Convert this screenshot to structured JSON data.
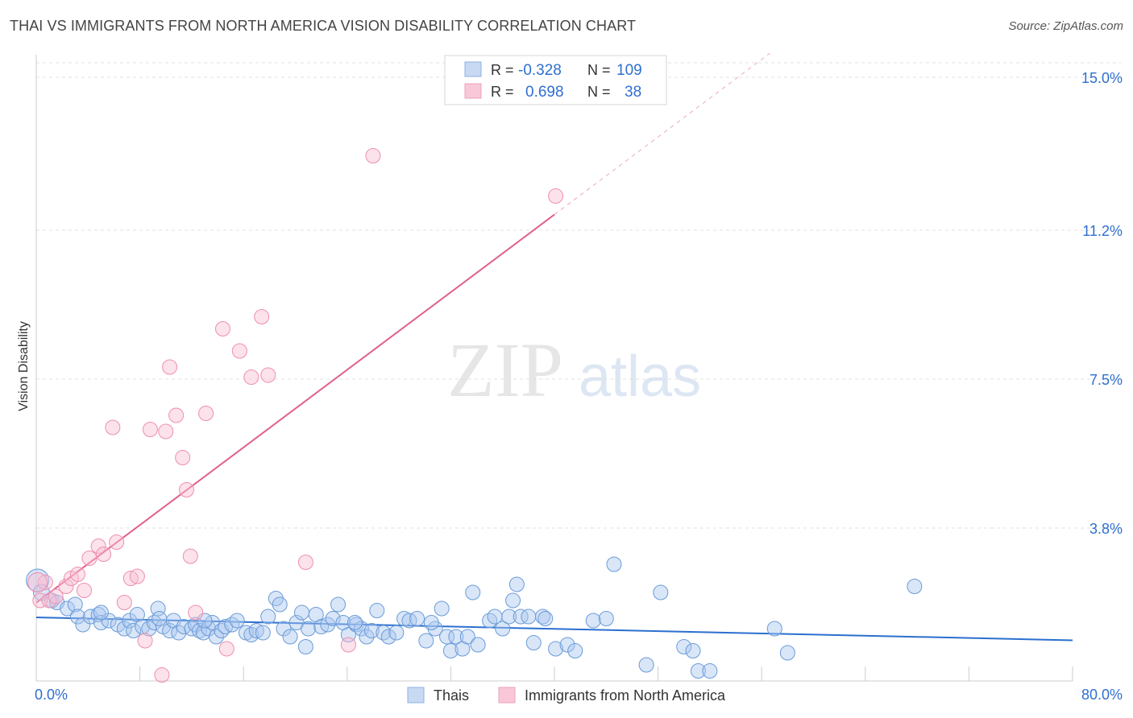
{
  "header": {
    "title": "THAI VS IMMIGRANTS FROM NORTH AMERICA VISION DISABILITY CORRELATION CHART",
    "source": "Source: ZipAtlas.com"
  },
  "watermark": {
    "zip": "ZIP",
    "atlas": "atlas"
  },
  "colors": {
    "thais": "#6a9bd8",
    "immigrants": "#ee8fb0",
    "thais_line": "#2b6fcf",
    "immigrants_line": "#e0608a",
    "value_text": "#2f6fd0"
  },
  "legend": {
    "rows": [
      {
        "r_label": "R =",
        "r_value": "-0.328",
        "n_label": "N =",
        "n_value": "109"
      },
      {
        "r_label": "R =",
        "r_value": "0.698",
        "n_label": "N =",
        "n_value": "38"
      }
    ]
  },
  "chart_data": {
    "type": "scatter",
    "ylabel": "Vision Disability",
    "xlim": [
      0,
      80
    ],
    "ylim": [
      0,
      15
    ],
    "x_tick_labels": [
      "0.0%",
      "80.0%"
    ],
    "y_ticks": [
      3.8,
      7.5,
      11.2,
      15.0
    ],
    "y_tick_labels": [
      "3.8%",
      "7.5%",
      "11.2%",
      "15.0%"
    ],
    "grid": true,
    "legend_position": "bottom",
    "series": [
      {
        "name": "Thais",
        "points": [
          [
            0.1,
            2.5,
            14
          ],
          [
            0.4,
            2.2,
            10
          ],
          [
            1.2,
            2.0,
            9
          ],
          [
            1.6,
            1.95,
            9
          ],
          [
            2.4,
            1.8,
            9
          ],
          [
            3.0,
            1.9,
            9
          ],
          [
            3.2,
            1.6,
            9
          ],
          [
            3.6,
            1.4,
            9
          ],
          [
            4.2,
            1.6,
            9
          ],
          [
            4.8,
            1.65,
            9
          ],
          [
            5.0,
            1.45,
            9
          ],
          [
            5.6,
            1.5,
            9
          ],
          [
            6.3,
            1.4,
            9
          ],
          [
            6.8,
            1.3,
            9
          ],
          [
            7.2,
            1.5,
            9
          ],
          [
            7.5,
            1.25,
            9
          ],
          [
            7.8,
            1.65,
            9
          ],
          [
            8.2,
            1.35,
            9
          ],
          [
            8.7,
            1.3,
            9
          ],
          [
            9.1,
            1.45,
            9
          ],
          [
            9.4,
            1.8,
            9
          ],
          [
            9.8,
            1.35,
            9
          ],
          [
            10.3,
            1.25,
            9
          ],
          [
            10.6,
            1.5,
            9
          ],
          [
            11.0,
            1.2,
            9
          ],
          [
            11.4,
            1.35,
            9
          ],
          [
            12.0,
            1.3,
            9
          ],
          [
            12.3,
            1.4,
            9
          ],
          [
            12.6,
            1.25,
            9
          ],
          [
            12.9,
            1.2,
            9
          ],
          [
            13.3,
            1.3,
            9
          ],
          [
            13.6,
            1.45,
            9
          ],
          [
            13.9,
            1.1,
            9
          ],
          [
            14.3,
            1.25,
            9
          ],
          [
            14.6,
            1.35,
            9
          ],
          [
            15.1,
            1.4,
            9
          ],
          [
            15.5,
            1.5,
            9
          ],
          [
            16.2,
            1.2,
            9
          ],
          [
            16.6,
            1.15,
            9
          ],
          [
            17.0,
            1.25,
            9
          ],
          [
            17.5,
            1.2,
            9
          ],
          [
            17.9,
            1.6,
            9
          ],
          [
            18.5,
            2.05,
            9
          ],
          [
            18.8,
            1.9,
            9
          ],
          [
            19.1,
            1.3,
            9
          ],
          [
            19.6,
            1.1,
            9
          ],
          [
            20.1,
            1.45,
            9
          ],
          [
            20.5,
            1.7,
            9
          ],
          [
            21.0,
            1.3,
            9
          ],
          [
            21.6,
            1.65,
            9
          ],
          [
            22.0,
            1.35,
            9
          ],
          [
            22.5,
            1.4,
            9
          ],
          [
            22.9,
            1.55,
            9
          ],
          [
            23.3,
            1.9,
            9
          ],
          [
            23.7,
            1.45,
            9
          ],
          [
            24.1,
            1.15,
            9
          ],
          [
            24.7,
            1.4,
            9
          ],
          [
            25.1,
            1.3,
            9
          ],
          [
            25.5,
            1.1,
            9
          ],
          [
            25.9,
            1.25,
            9
          ],
          [
            26.3,
            1.75,
            9
          ],
          [
            26.8,
            1.2,
            9
          ],
          [
            27.2,
            1.1,
            9
          ],
          [
            27.8,
            1.2,
            9
          ],
          [
            28.4,
            1.55,
            9
          ],
          [
            28.8,
            1.5,
            9
          ],
          [
            29.4,
            1.55,
            9
          ],
          [
            30.1,
            1.0,
            9
          ],
          [
            30.8,
            1.3,
            9
          ],
          [
            31.3,
            1.8,
            9
          ],
          [
            31.7,
            1.1,
            9
          ],
          [
            32.0,
            0.75,
            9
          ],
          [
            32.4,
            1.1,
            9
          ],
          [
            32.9,
            0.8,
            9
          ],
          [
            33.3,
            1.1,
            9
          ],
          [
            33.7,
            2.2,
            9
          ],
          [
            34.1,
            0.9,
            9
          ],
          [
            35.0,
            1.5,
            9
          ],
          [
            35.4,
            1.6,
            9
          ],
          [
            36.0,
            1.3,
            9
          ],
          [
            36.5,
            1.6,
            9
          ],
          [
            36.8,
            2.0,
            9
          ],
          [
            37.1,
            2.4,
            9
          ],
          [
            37.4,
            1.6,
            9
          ],
          [
            38.0,
            1.6,
            9
          ],
          [
            38.4,
            0.95,
            9
          ],
          [
            39.1,
            1.6,
            9
          ],
          [
            39.3,
            1.55,
            9
          ],
          [
            40.1,
            0.8,
            9
          ],
          [
            41.0,
            0.9,
            9
          ],
          [
            41.6,
            0.75,
            9
          ],
          [
            43.0,
            1.5,
            9
          ],
          [
            44.6,
            2.9,
            9
          ],
          [
            47.1,
            0.4,
            9
          ],
          [
            48.2,
            2.2,
            9
          ],
          [
            50.0,
            0.85,
            9
          ],
          [
            50.7,
            0.75,
            9
          ],
          [
            51.1,
            0.25,
            9
          ],
          [
            52.0,
            0.25,
            9
          ],
          [
            57.0,
            1.3,
            9
          ],
          [
            58.0,
            0.7,
            9
          ],
          [
            67.8,
            2.35,
            9
          ],
          [
            5.0,
            1.7,
            9
          ],
          [
            9.5,
            1.55,
            9
          ],
          [
            13.0,
            1.5,
            9
          ],
          [
            20.8,
            0.85,
            9
          ],
          [
            24.6,
            1.45,
            9
          ],
          [
            30.5,
            1.45,
            9
          ],
          [
            44.0,
            1.55,
            9
          ]
        ]
      },
      {
        "name": "Immigrants from North America",
        "points": [
          [
            0.3,
            2.0,
            9
          ],
          [
            0.7,
            2.45,
            9
          ],
          [
            1.0,
            2.0,
            9
          ],
          [
            1.5,
            2.1,
            9
          ],
          [
            2.3,
            2.35,
            9
          ],
          [
            2.7,
            2.55,
            9
          ],
          [
            3.2,
            2.65,
            9
          ],
          [
            3.7,
            2.25,
            9
          ],
          [
            4.1,
            3.05,
            9
          ],
          [
            4.8,
            3.35,
            9
          ],
          [
            5.2,
            3.15,
            9
          ],
          [
            5.9,
            6.3,
            9
          ],
          [
            6.2,
            3.45,
            9
          ],
          [
            6.8,
            1.95,
            9
          ],
          [
            7.3,
            2.55,
            9
          ],
          [
            7.8,
            2.6,
            9
          ],
          [
            8.4,
            1.0,
            9
          ],
          [
            8.8,
            6.25,
            9
          ],
          [
            9.7,
            0.15,
            9
          ],
          [
            10.0,
            6.2,
            9
          ],
          [
            10.3,
            7.8,
            9
          ],
          [
            10.8,
            6.6,
            9
          ],
          [
            11.3,
            5.55,
            9
          ],
          [
            11.6,
            4.75,
            9
          ],
          [
            11.9,
            3.1,
            9
          ],
          [
            12.3,
            1.7,
            9
          ],
          [
            13.1,
            6.65,
            9
          ],
          [
            14.4,
            8.75,
            9
          ],
          [
            14.7,
            0.8,
            9
          ],
          [
            15.7,
            8.2,
            9
          ],
          [
            16.6,
            7.55,
            9
          ],
          [
            17.4,
            9.05,
            9
          ],
          [
            17.9,
            7.6,
            9
          ],
          [
            20.8,
            2.95,
            9
          ],
          [
            24.1,
            0.9,
            9
          ],
          [
            26.0,
            13.05,
            9
          ],
          [
            40.1,
            12.05,
            9
          ],
          [
            0.1,
            2.45,
            12
          ]
        ]
      }
    ]
  },
  "bottom_legend": [
    {
      "label": "Thais"
    },
    {
      "label": "Immigrants from North America"
    }
  ]
}
